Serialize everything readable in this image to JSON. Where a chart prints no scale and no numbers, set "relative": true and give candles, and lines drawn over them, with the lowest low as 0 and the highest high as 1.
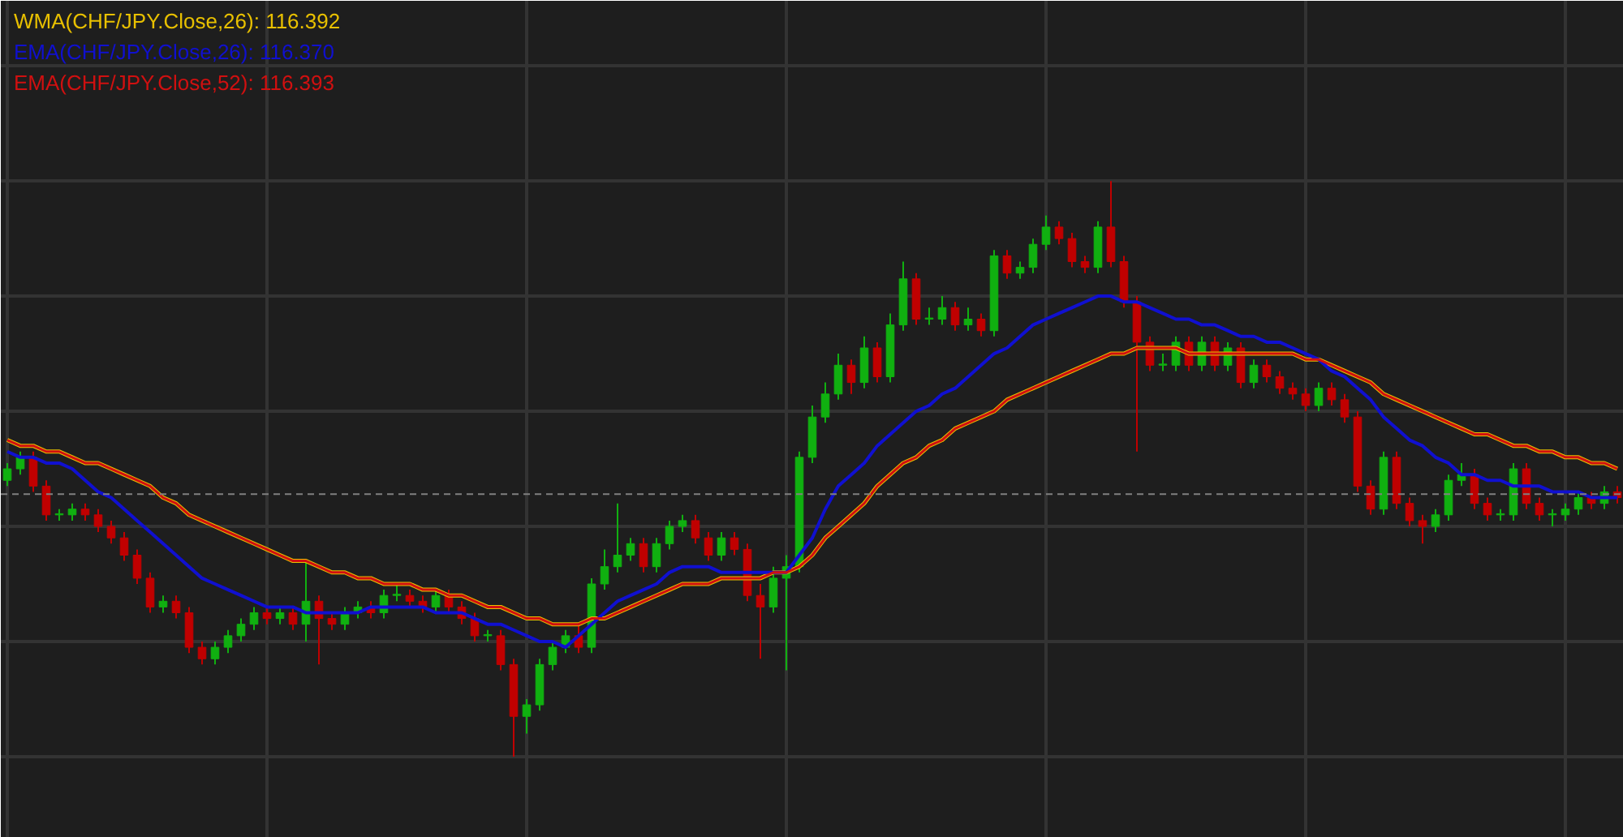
{
  "chart_data": {
    "type": "candlestick",
    "relative": true,
    "grid": true,
    "legend": "top left",
    "categories": [
      null,
      null,
      null,
      null,
      null,
      null,
      null,
      null,
      null,
      null,
      null,
      null,
      null,
      null,
      null,
      null,
      null,
      null,
      null,
      null,
      null,
      null,
      null,
      null,
      null,
      null,
      null,
      null,
      null,
      null,
      null,
      null,
      null,
      null,
      null,
      null,
      null,
      null,
      null,
      null,
      null,
      null,
      null,
      null,
      null,
      null,
      null,
      null,
      null,
      null,
      null,
      null,
      null,
      null,
      null,
      null,
      null,
      null,
      null,
      null,
      null,
      null,
      null,
      null,
      null,
      null,
      null,
      null,
      null,
      null,
      null,
      null,
      null,
      null,
      null,
      null,
      null,
      null,
      null,
      null,
      null,
      null,
      null,
      null,
      null,
      null,
      null,
      null,
      null,
      null,
      null,
      null,
      null,
      null,
      null,
      null,
      null,
      null,
      null,
      null,
      null,
      null,
      null,
      null,
      null,
      null,
      null,
      null,
      null,
      null,
      null,
      null,
      null,
      null,
      null,
      null,
      null,
      null,
      null,
      null,
      null,
      null,
      null,
      null,
      null
    ],
    "ohlc": [
      [
        0.48,
        0.51,
        0.47,
        0.5
      ],
      [
        0.5,
        0.53,
        0.49,
        0.52
      ],
      [
        0.52,
        0.53,
        0.46,
        0.47
      ],
      [
        0.47,
        0.48,
        0.41,
        0.42
      ],
      [
        0.42,
        0.43,
        0.41,
        0.42
      ],
      [
        0.42,
        0.44,
        0.41,
        0.43
      ],
      [
        0.43,
        0.44,
        0.41,
        0.42
      ],
      [
        0.42,
        0.43,
        0.39,
        0.4
      ],
      [
        0.4,
        0.41,
        0.37,
        0.38
      ],
      [
        0.38,
        0.39,
        0.34,
        0.35
      ],
      [
        0.35,
        0.36,
        0.3,
        0.31
      ],
      [
        0.31,
        0.32,
        0.25,
        0.26
      ],
      [
        0.26,
        0.28,
        0.25,
        0.27
      ],
      [
        0.27,
        0.28,
        0.24,
        0.25
      ],
      [
        0.25,
        0.26,
        0.18,
        0.19
      ],
      [
        0.19,
        0.2,
        0.16,
        0.17
      ],
      [
        0.17,
        0.2,
        0.16,
        0.19
      ],
      [
        0.19,
        0.22,
        0.18,
        0.21
      ],
      [
        0.21,
        0.24,
        0.2,
        0.23
      ],
      [
        0.23,
        0.26,
        0.22,
        0.25
      ],
      [
        0.25,
        0.26,
        0.23,
        0.24
      ],
      [
        0.24,
        0.26,
        0.23,
        0.25
      ],
      [
        0.25,
        0.26,
        0.22,
        0.23
      ],
      [
        0.23,
        0.34,
        0.2,
        0.27
      ],
      [
        0.27,
        0.28,
        0.16,
        0.24
      ],
      [
        0.24,
        0.25,
        0.22,
        0.23
      ],
      [
        0.23,
        0.26,
        0.22,
        0.25
      ],
      [
        0.25,
        0.27,
        0.24,
        0.26
      ],
      [
        0.26,
        0.27,
        0.24,
        0.25
      ],
      [
        0.25,
        0.29,
        0.24,
        0.28
      ],
      [
        0.28,
        0.3,
        0.27,
        0.28
      ],
      [
        0.28,
        0.29,
        0.26,
        0.27
      ],
      [
        0.27,
        0.28,
        0.25,
        0.26
      ],
      [
        0.26,
        0.29,
        0.25,
        0.28
      ],
      [
        0.28,
        0.29,
        0.25,
        0.26
      ],
      [
        0.26,
        0.27,
        0.23,
        0.24
      ],
      [
        0.24,
        0.25,
        0.2,
        0.21
      ],
      [
        0.21,
        0.22,
        0.2,
        0.21
      ],
      [
        0.21,
        0.22,
        0.15,
        0.16
      ],
      [
        0.16,
        0.17,
        0.0,
        0.07
      ],
      [
        0.07,
        0.1,
        0.04,
        0.09
      ],
      [
        0.09,
        0.17,
        0.08,
        0.16
      ],
      [
        0.16,
        0.2,
        0.15,
        0.19
      ],
      [
        0.19,
        0.22,
        0.18,
        0.21
      ],
      [
        0.21,
        0.23,
        0.18,
        0.19
      ],
      [
        0.19,
        0.31,
        0.18,
        0.3
      ],
      [
        0.3,
        0.36,
        0.29,
        0.33
      ],
      [
        0.33,
        0.44,
        0.32,
        0.35
      ],
      [
        0.35,
        0.38,
        0.34,
        0.37
      ],
      [
        0.37,
        0.38,
        0.32,
        0.33
      ],
      [
        0.33,
        0.38,
        0.32,
        0.37
      ],
      [
        0.37,
        0.41,
        0.36,
        0.4
      ],
      [
        0.4,
        0.42,
        0.39,
        0.41
      ],
      [
        0.41,
        0.42,
        0.37,
        0.38
      ],
      [
        0.38,
        0.39,
        0.34,
        0.35
      ],
      [
        0.35,
        0.39,
        0.34,
        0.38
      ],
      [
        0.38,
        0.39,
        0.35,
        0.36
      ],
      [
        0.36,
        0.37,
        0.27,
        0.28
      ],
      [
        0.28,
        0.3,
        0.17,
        0.26
      ],
      [
        0.26,
        0.33,
        0.25,
        0.31
      ],
      [
        0.31,
        0.35,
        0.15,
        0.33
      ],
      [
        0.33,
        0.53,
        0.32,
        0.52
      ],
      [
        0.52,
        0.61,
        0.51,
        0.59
      ],
      [
        0.59,
        0.65,
        0.58,
        0.63
      ],
      [
        0.63,
        0.7,
        0.62,
        0.68
      ],
      [
        0.68,
        0.69,
        0.63,
        0.65
      ],
      [
        0.65,
        0.73,
        0.64,
        0.71
      ],
      [
        0.71,
        0.72,
        0.65,
        0.66
      ],
      [
        0.66,
        0.77,
        0.65,
        0.75
      ],
      [
        0.75,
        0.86,
        0.74,
        0.83
      ],
      [
        0.83,
        0.84,
        0.75,
        0.76
      ],
      [
        0.76,
        0.78,
        0.75,
        0.76
      ],
      [
        0.76,
        0.8,
        0.75,
        0.78
      ],
      [
        0.78,
        0.79,
        0.74,
        0.75
      ],
      [
        0.75,
        0.78,
        0.74,
        0.76
      ],
      [
        0.76,
        0.77,
        0.73,
        0.74
      ],
      [
        0.74,
        0.88,
        0.73,
        0.87
      ],
      [
        0.87,
        0.88,
        0.83,
        0.84
      ],
      [
        0.84,
        0.86,
        0.83,
        0.85
      ],
      [
        0.85,
        0.9,
        0.84,
        0.89
      ],
      [
        0.89,
        0.94,
        0.88,
        0.92
      ],
      [
        0.92,
        0.93,
        0.89,
        0.9
      ],
      [
        0.9,
        0.91,
        0.85,
        0.86
      ],
      [
        0.86,
        0.87,
        0.84,
        0.85
      ],
      [
        0.85,
        0.93,
        0.84,
        0.92
      ],
      [
        0.92,
        1.0,
        0.85,
        0.86
      ],
      [
        0.86,
        0.87,
        0.78,
        0.79
      ],
      [
        0.79,
        0.8,
        0.53,
        0.72
      ],
      [
        0.72,
        0.73,
        0.67,
        0.68
      ],
      [
        0.68,
        0.7,
        0.67,
        0.68
      ],
      [
        0.68,
        0.73,
        0.67,
        0.72
      ],
      [
        0.72,
        0.73,
        0.67,
        0.68
      ],
      [
        0.68,
        0.73,
        0.67,
        0.72
      ],
      [
        0.72,
        0.73,
        0.67,
        0.68
      ],
      [
        0.68,
        0.72,
        0.67,
        0.71
      ],
      [
        0.71,
        0.72,
        0.64,
        0.65
      ],
      [
        0.65,
        0.69,
        0.64,
        0.68
      ],
      [
        0.68,
        0.69,
        0.65,
        0.66
      ],
      [
        0.66,
        0.67,
        0.63,
        0.64
      ],
      [
        0.64,
        0.65,
        0.62,
        0.63
      ],
      [
        0.63,
        0.64,
        0.6,
        0.61
      ],
      [
        0.61,
        0.65,
        0.6,
        0.64
      ],
      [
        0.64,
        0.65,
        0.61,
        0.62
      ],
      [
        0.62,
        0.63,
        0.58,
        0.59
      ],
      [
        0.59,
        0.6,
        0.46,
        0.47
      ],
      [
        0.47,
        0.48,
        0.42,
        0.43
      ],
      [
        0.43,
        0.53,
        0.42,
        0.52
      ],
      [
        0.52,
        0.53,
        0.43,
        0.44
      ],
      [
        0.44,
        0.45,
        0.4,
        0.41
      ],
      [
        0.41,
        0.42,
        0.37,
        0.4
      ],
      [
        0.4,
        0.43,
        0.39,
        0.42
      ],
      [
        0.42,
        0.49,
        0.41,
        0.48
      ],
      [
        0.48,
        0.51,
        0.47,
        0.49
      ],
      [
        0.49,
        0.5,
        0.43,
        0.44
      ],
      [
        0.44,
        0.45,
        0.41,
        0.42
      ],
      [
        0.42,
        0.43,
        0.41,
        0.42
      ],
      [
        0.42,
        0.51,
        0.41,
        0.5
      ],
      [
        0.5,
        0.51,
        0.43,
        0.44
      ],
      [
        0.44,
        0.45,
        0.41,
        0.42
      ],
      [
        0.42,
        0.43,
        0.4,
        0.42
      ],
      [
        0.42,
        0.44,
        0.41,
        0.43
      ],
      [
        0.43,
        0.46,
        0.42,
        0.45
      ],
      [
        0.45,
        0.46,
        0.43,
        0.44
      ],
      [
        0.44,
        0.47,
        0.43,
        0.46
      ],
      [
        0.46,
        0.47,
        0.44,
        0.45
      ]
    ],
    "series": [
      {
        "name": "WMA(CHF/JPY.Close,26): 116.392",
        "type": "line",
        "color": "#e8c000",
        "values": [
          0.55,
          0.54,
          0.54,
          0.53,
          0.53,
          0.52,
          0.51,
          0.51,
          0.5,
          0.49,
          0.48,
          0.47,
          0.45,
          0.44,
          0.42,
          0.41,
          0.4,
          0.39,
          0.38,
          0.37,
          0.36,
          0.35,
          0.34,
          0.34,
          0.33,
          0.32,
          0.32,
          0.31,
          0.31,
          0.3,
          0.3,
          0.3,
          0.29,
          0.29,
          0.28,
          0.28,
          0.27,
          0.26,
          0.26,
          0.25,
          0.24,
          0.24,
          0.23,
          0.23,
          0.23,
          0.24,
          0.24,
          0.25,
          0.26,
          0.27,
          0.28,
          0.29,
          0.3,
          0.3,
          0.3,
          0.31,
          0.31,
          0.31,
          0.31,
          0.32,
          0.32,
          0.33,
          0.35,
          0.38,
          0.4,
          0.42,
          0.44,
          0.47,
          0.49,
          0.51,
          0.52,
          0.54,
          0.55,
          0.57,
          0.58,
          0.59,
          0.6,
          0.62,
          0.63,
          0.64,
          0.65,
          0.66,
          0.67,
          0.68,
          0.69,
          0.7,
          0.7,
          0.71,
          0.71,
          0.71,
          0.71,
          0.7,
          0.7,
          0.7,
          0.7,
          0.7,
          0.7,
          0.7,
          0.7,
          0.7,
          0.69,
          0.69,
          0.68,
          0.67,
          0.66,
          0.65,
          0.63,
          0.62,
          0.61,
          0.6,
          0.59,
          0.58,
          0.57,
          0.56,
          0.56,
          0.55,
          0.54,
          0.54,
          0.53,
          0.53,
          0.52,
          0.52,
          0.51,
          0.51,
          0.5
        ]
      },
      {
        "name": "EMA(CHF/JPY.Close,26): 116.370",
        "type": "line",
        "color": "#1010d0",
        "values": [
          0.53,
          0.52,
          0.52,
          0.51,
          0.51,
          0.5,
          0.48,
          0.46,
          0.45,
          0.43,
          0.41,
          0.39,
          0.37,
          0.35,
          0.33,
          0.31,
          0.3,
          0.29,
          0.28,
          0.27,
          0.26,
          0.26,
          0.26,
          0.25,
          0.25,
          0.25,
          0.25,
          0.25,
          0.26,
          0.26,
          0.26,
          0.26,
          0.26,
          0.25,
          0.25,
          0.25,
          0.24,
          0.23,
          0.23,
          0.22,
          0.21,
          0.2,
          0.2,
          0.19,
          0.21,
          0.23,
          0.25,
          0.27,
          0.28,
          0.29,
          0.3,
          0.32,
          0.33,
          0.33,
          0.33,
          0.32,
          0.32,
          0.32,
          0.32,
          0.32,
          0.32,
          0.35,
          0.38,
          0.43,
          0.47,
          0.49,
          0.51,
          0.54,
          0.56,
          0.58,
          0.6,
          0.61,
          0.63,
          0.64,
          0.66,
          0.68,
          0.7,
          0.71,
          0.73,
          0.75,
          0.76,
          0.77,
          0.78,
          0.79,
          0.8,
          0.8,
          0.79,
          0.79,
          0.78,
          0.77,
          0.76,
          0.76,
          0.75,
          0.75,
          0.74,
          0.73,
          0.73,
          0.72,
          0.72,
          0.71,
          0.7,
          0.69,
          0.67,
          0.66,
          0.64,
          0.62,
          0.59,
          0.57,
          0.55,
          0.54,
          0.52,
          0.51,
          0.49,
          0.49,
          0.48,
          0.48,
          0.47,
          0.47,
          0.47,
          0.46,
          0.46,
          0.46,
          0.45,
          0.45,
          0.45
        ]
      },
      {
        "name": "EMA(CHF/JPY.Close,52): 116.393",
        "type": "line",
        "color": "#d01010",
        "values": [
          0.55,
          0.54,
          0.54,
          0.53,
          0.53,
          0.52,
          0.51,
          0.51,
          0.5,
          0.49,
          0.48,
          0.47,
          0.45,
          0.44,
          0.42,
          0.41,
          0.4,
          0.39,
          0.38,
          0.37,
          0.36,
          0.35,
          0.34,
          0.34,
          0.33,
          0.32,
          0.32,
          0.31,
          0.31,
          0.3,
          0.3,
          0.3,
          0.29,
          0.29,
          0.28,
          0.28,
          0.27,
          0.26,
          0.26,
          0.25,
          0.24,
          0.24,
          0.23,
          0.23,
          0.23,
          0.24,
          0.24,
          0.25,
          0.26,
          0.27,
          0.28,
          0.29,
          0.3,
          0.3,
          0.3,
          0.31,
          0.31,
          0.31,
          0.31,
          0.32,
          0.32,
          0.33,
          0.35,
          0.38,
          0.4,
          0.42,
          0.44,
          0.47,
          0.49,
          0.51,
          0.52,
          0.54,
          0.55,
          0.57,
          0.58,
          0.59,
          0.6,
          0.62,
          0.63,
          0.64,
          0.65,
          0.66,
          0.67,
          0.68,
          0.69,
          0.7,
          0.7,
          0.71,
          0.71,
          0.71,
          0.71,
          0.7,
          0.7,
          0.7,
          0.7,
          0.7,
          0.7,
          0.7,
          0.7,
          0.7,
          0.69,
          0.69,
          0.68,
          0.67,
          0.66,
          0.65,
          0.63,
          0.62,
          0.61,
          0.6,
          0.59,
          0.58,
          0.57,
          0.56,
          0.56,
          0.55,
          0.54,
          0.54,
          0.53,
          0.53,
          0.52,
          0.52,
          0.51,
          0.51,
          0.5
        ]
      }
    ],
    "ref_lines": [
      {
        "axis": "y",
        "value": 0.456,
        "color": "#808080",
        "line_style": "dashed"
      }
    ]
  }
}
